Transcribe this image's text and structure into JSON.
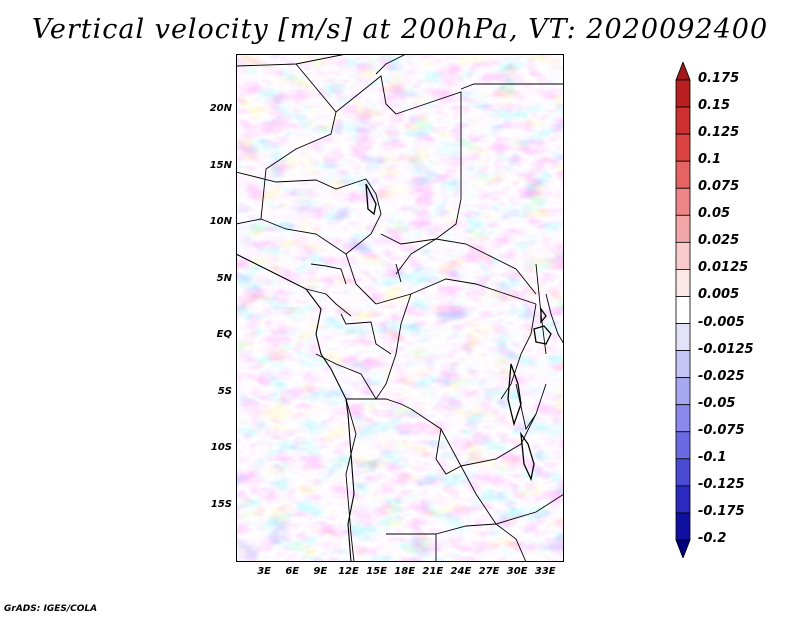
{
  "title": "Vertical velocity [m/s] at 200hPa, VT: 2020092400",
  "credit": "GrADS: IGES/COLA",
  "map": {
    "lat_labels": [
      "20N",
      "15N",
      "10N",
      "5N",
      "EQ",
      "5S",
      "10S",
      "15S"
    ],
    "lat_values": [
      20,
      15,
      10,
      5,
      0,
      -5,
      -10,
      -15
    ],
    "lon_labels": [
      "3E",
      "6E",
      "9E",
      "12E",
      "15E",
      "18E",
      "21E",
      "24E",
      "27E",
      "30E",
      "33E"
    ],
    "lon_values": [
      3,
      6,
      9,
      12,
      15,
      18,
      21,
      24,
      27,
      30,
      33
    ],
    "lon_range": [
      0,
      35
    ],
    "lat_range": [
      -20,
      25
    ]
  },
  "colorbar": {
    "labels": [
      "0.175",
      "0.15",
      "0.125",
      "0.1",
      "0.075",
      "0.05",
      "0.025",
      "0.0125",
      "0.005",
      "-0.005",
      "-0.0125",
      "-0.025",
      "-0.05",
      "-0.075",
      "-0.1",
      "-0.125",
      "-0.175",
      "-0.2"
    ],
    "colors": [
      "#a01818",
      "#b82020",
      "#cc3030",
      "#dc4444",
      "#e46464",
      "#ec8686",
      "#f2a8a8",
      "#f8cccc",
      "#fde8e8",
      "#ffffff",
      "#e2e2fb",
      "#c6c6f6",
      "#a8a8f0",
      "#8a8aec",
      "#6a6ae2",
      "#4a4ad2",
      "#2a2ac0",
      "#1010a0",
      "#000080"
    ]
  }
}
